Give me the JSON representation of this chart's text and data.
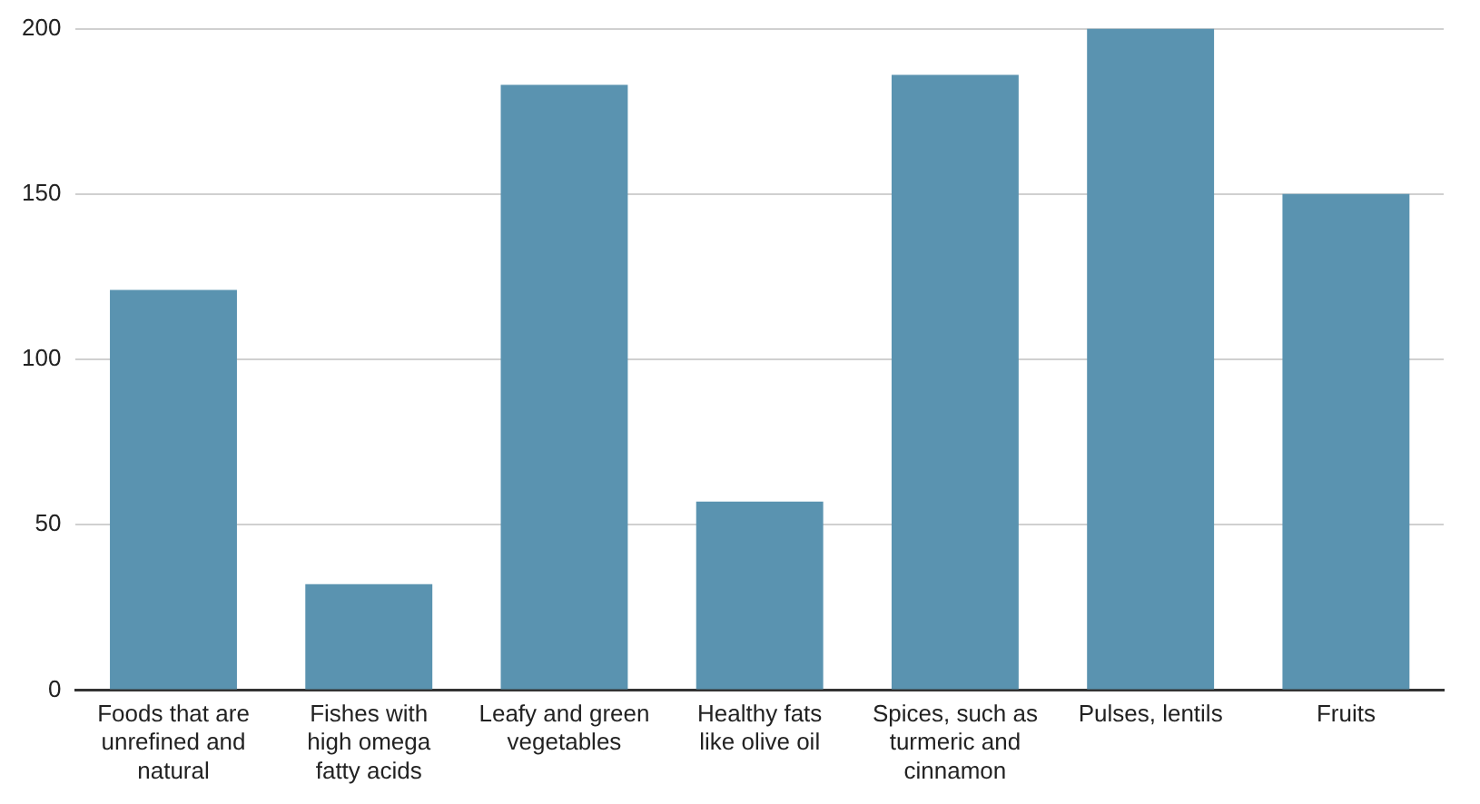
{
  "chart_data": {
    "type": "bar",
    "categories": [
      "Foods that are unrefined and natural",
      "Fishes with high omega fatty acids",
      "Leafy and green vegetables",
      "Healthy fats like olive oil",
      "Spices, such as turmeric and cinnamon",
      "Pulses, lentils",
      "Fruits"
    ],
    "values": [
      121,
      32,
      183,
      57,
      186,
      200,
      150
    ],
    "color": "#5a93b0",
    "ylim": [
      0,
      200
    ],
    "yticks": [
      0,
      50,
      100,
      150,
      200
    ],
    "grid": "y",
    "legend": false
  }
}
